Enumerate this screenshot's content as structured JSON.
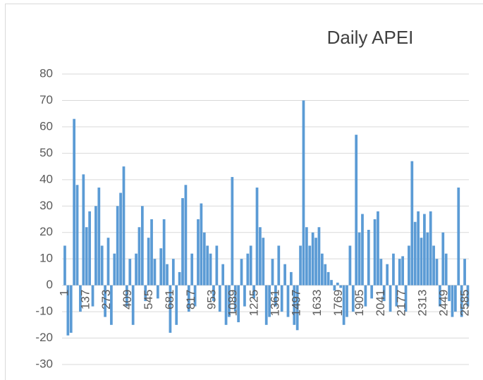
{
  "chart_data": {
    "type": "bar",
    "title": "Daily APEI",
    "x": [
      1,
      21,
      41,
      61,
      81,
      101,
      121,
      141,
      161,
      181,
      201,
      221,
      241,
      261,
      281,
      301,
      321,
      341,
      361,
      381,
      401,
      421,
      441,
      461,
      481,
      501,
      521,
      541,
      561,
      581,
      601,
      621,
      641,
      661,
      681,
      701,
      721,
      741,
      761,
      781,
      801,
      821,
      841,
      861,
      881,
      901,
      921,
      941,
      961,
      981,
      1001,
      1021,
      1041,
      1061,
      1081,
      1101,
      1121,
      1141,
      1161,
      1181,
      1201,
      1221,
      1241,
      1261,
      1281,
      1301,
      1321,
      1341,
      1361,
      1381,
      1401,
      1421,
      1441,
      1461,
      1481,
      1501,
      1521,
      1541,
      1561,
      1581,
      1601,
      1621,
      1641,
      1661,
      1681,
      1701,
      1721,
      1741,
      1761,
      1781,
      1801,
      1821,
      1841,
      1861,
      1881,
      1901,
      1921,
      1941,
      1961,
      1981,
      2001,
      2021,
      2041,
      2061,
      2081,
      2101,
      2121,
      2141,
      2161,
      2181,
      2201,
      2221,
      2241,
      2261,
      2281,
      2301,
      2321,
      2341,
      2361,
      2381,
      2401,
      2421,
      2441,
      2461,
      2481,
      2501,
      2521,
      2541,
      2561,
      2581,
      2601
    ],
    "values": [
      15,
      -19,
      -18,
      63,
      38,
      -10,
      42,
      22,
      28,
      -8,
      30,
      37,
      15,
      -12,
      18,
      -15,
      12,
      30,
      35,
      45,
      -8,
      10,
      -15,
      12,
      22,
      30,
      -6,
      18,
      25,
      10,
      -5,
      14,
      25,
      8,
      -18,
      10,
      -15,
      5,
      33,
      38,
      -10,
      12,
      -8,
      25,
      31,
      20,
      15,
      12,
      -6,
      15,
      -10,
      8,
      -15,
      -12,
      41,
      -10,
      -14,
      10,
      -8,
      12,
      15,
      -5,
      37,
      22,
      18,
      -15,
      -12,
      10,
      -8,
      15,
      -10,
      8,
      -12,
      5,
      -15,
      -17,
      15,
      70,
      22,
      15,
      20,
      18,
      22,
      12,
      8,
      5,
      2,
      -2,
      1,
      -1,
      -15,
      -12,
      15,
      -10,
      57,
      20,
      27,
      -8,
      21,
      -5,
      25,
      28,
      10,
      -6,
      8,
      -10,
      12,
      -8,
      10,
      11,
      -10,
      15,
      47,
      24,
      28,
      18,
      27,
      20,
      28,
      15,
      10,
      -8,
      20,
      12,
      -6,
      -12,
      -10,
      37,
      -12,
      10,
      -8
    ],
    "color": "#5b9bd5",
    "xlim": [
      -17,
      2608
    ],
    "xticks": [
      1,
      137,
      273,
      409,
      545,
      681,
      817,
      953,
      1089,
      1225,
      1361,
      1497,
      1633,
      1769,
      1905,
      2041,
      2177,
      2313,
      2449,
      2585
    ],
    "ylim": [
      -30,
      80
    ],
    "yticks": [
      -30,
      -20,
      -10,
      0,
      10,
      20,
      30,
      40,
      50,
      60,
      70,
      80
    ],
    "grid": true
  }
}
